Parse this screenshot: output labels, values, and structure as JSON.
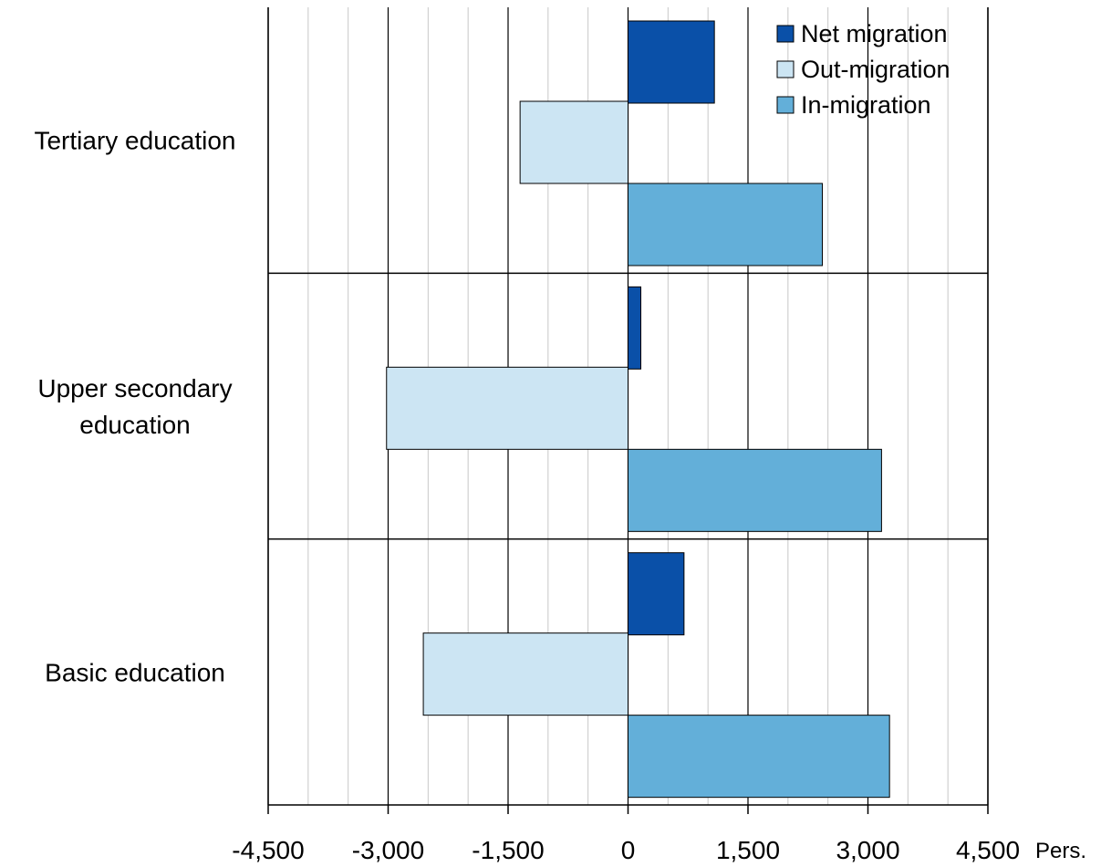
{
  "chart_data": {
    "type": "bar",
    "orientation": "horizontal",
    "categories": [
      "Tertiary education",
      "Upper secondary education",
      "Basic education"
    ],
    "category_label_lines": [
      [
        "Tertiary education"
      ],
      [
        "Upper secondary",
        "education"
      ],
      [
        "Basic education"
      ]
    ],
    "series": [
      {
        "name": "Net migration",
        "color": "#0a50a8",
        "values": [
          1080,
          160,
          700
        ]
      },
      {
        "name": "Out-migration",
        "color": "#cce5f3",
        "values": [
          -1350,
          -3020,
          -2560
        ]
      },
      {
        "name": "In-migration",
        "color": "#63afd9",
        "values": [
          2430,
          3170,
          3270
        ]
      }
    ],
    "xlim": [
      -4500,
      4500
    ],
    "major_ticks": [
      -4500,
      -3000,
      -1500,
      0,
      1500,
      3000,
      4500
    ],
    "tick_labels": [
      "-4,500",
      "-3,000",
      "-1,500",
      "0",
      "1,500",
      "3,000",
      "4,500"
    ],
    "minor_step": 500,
    "unit_label": "Pers.",
    "legend": {
      "position": "top-right",
      "entries": [
        "Net migration",
        "Out-migration",
        "In-migration"
      ]
    },
    "grid": true
  }
}
